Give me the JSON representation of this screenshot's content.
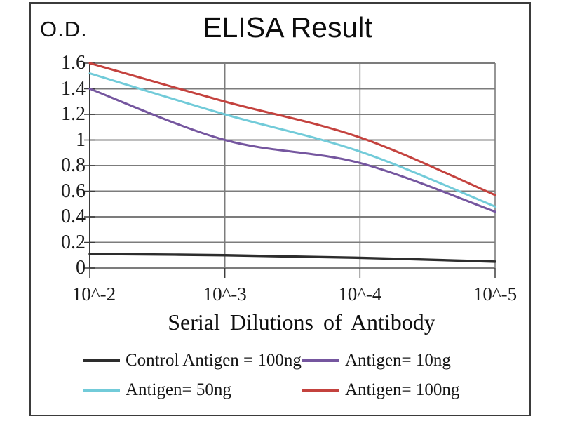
{
  "title": "ELISA Result",
  "colors": {
    "border": "#3b3b3b",
    "gridline": "#7c7c7c",
    "axis": "#3c3c3c",
    "control_line": "#2d2d2d",
    "antigen_10ng_line": "#75569f",
    "antigen_50ng_line": "#72cbd9",
    "antigen_100ng_line": "#c4423e"
  },
  "chart_data": {
    "type": "line",
    "title": "ELISA Result",
    "ylabel": "O.D.",
    "xlabel": "Serial Dilutions of Antibody",
    "categories": [
      "10^-2",
      "10^-3",
      "10^-4",
      "10^-5"
    ],
    "ylim": [
      0,
      1.6
    ],
    "y_ticks": [
      "1.6",
      "1.4",
      "1.2",
      "1",
      "0.8",
      "0.6",
      "0.4",
      "0.2",
      "0"
    ],
    "grid": true,
    "legend_position": "bottom",
    "series": [
      {
        "name": "Control Antigen = 100ng",
        "color": "#2d2d2d",
        "values": [
          0.11,
          0.1,
          0.08,
          0.05
        ]
      },
      {
        "name": "Antigen= 10ng",
        "color": "#75569f",
        "values": [
          1.4,
          1.0,
          0.82,
          0.44
        ]
      },
      {
        "name": "Antigen= 50ng",
        "color": "#72cbd9",
        "values": [
          1.52,
          1.2,
          0.91,
          0.48
        ]
      },
      {
        "name": "Antigen= 100ng",
        "color": "#c4423e",
        "values": [
          1.6,
          1.3,
          1.02,
          0.57
        ]
      }
    ]
  }
}
